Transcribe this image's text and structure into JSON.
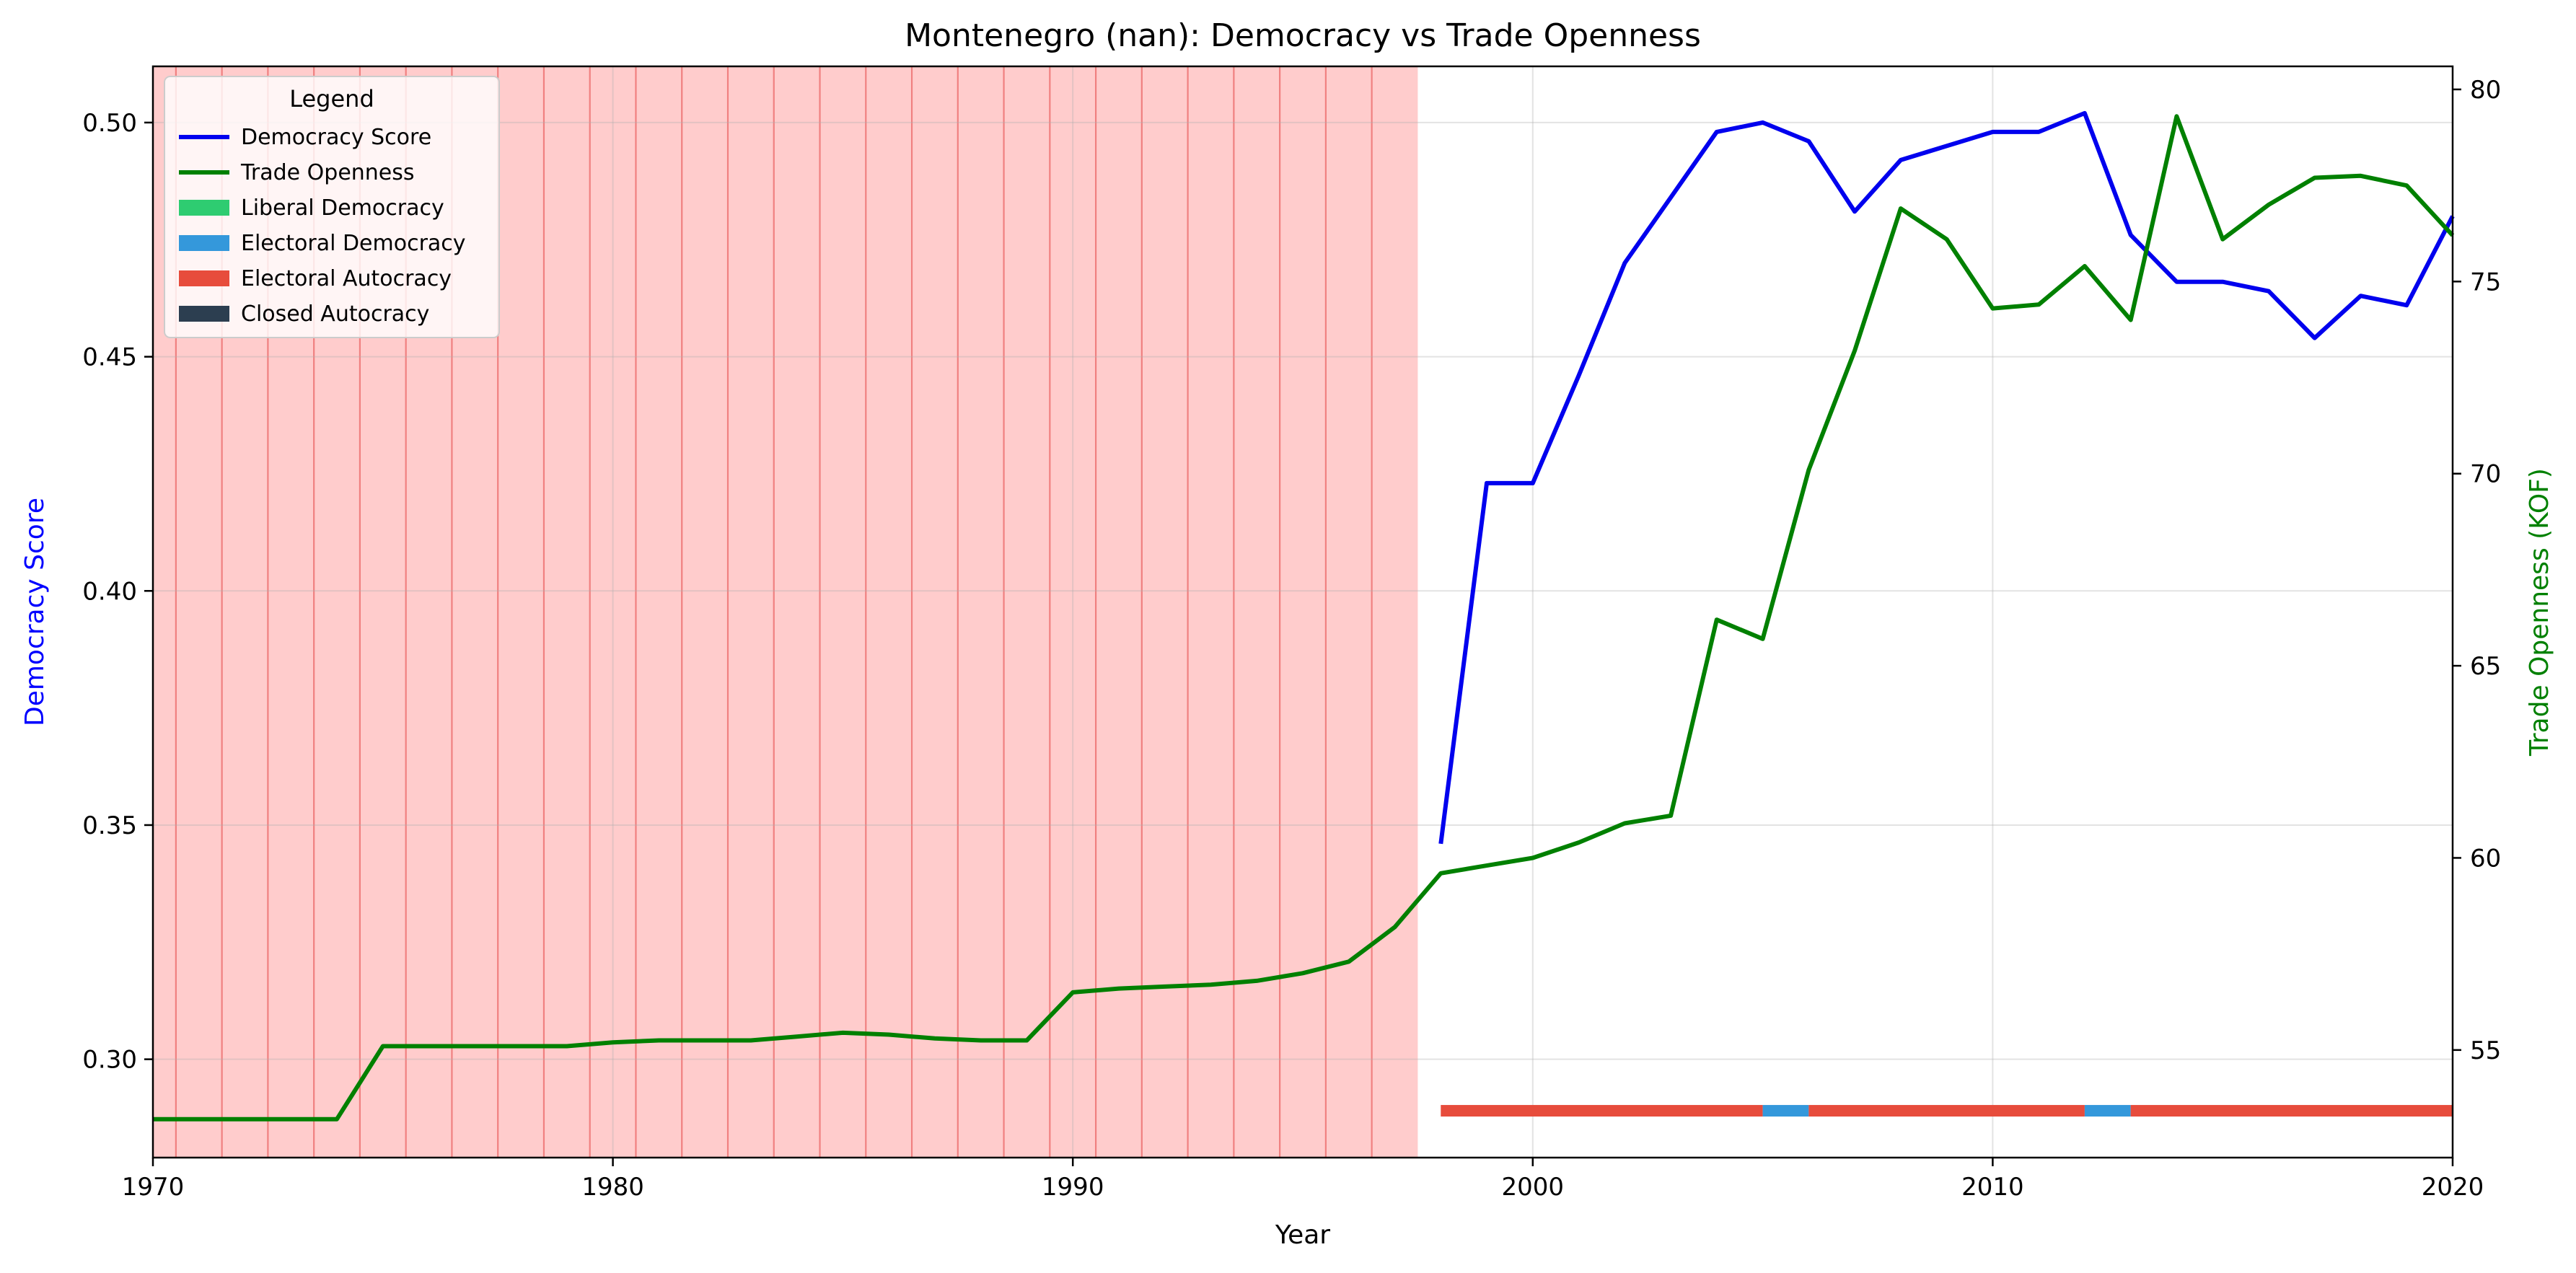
{
  "chart_data": {
    "type": "line",
    "title": "Montenegro (nan): Democracy vs Trade Openness",
    "xlabel": "Year",
    "ylabel_left": "Democracy Score",
    "ylabel_right": "Trade Openness (KOF)",
    "xlim": [
      1970,
      2020
    ],
    "ylim_left": [
      0.279,
      0.512
    ],
    "ylim_right": [
      52.2,
      80.6
    ],
    "x_ticks": [
      1970,
      1980,
      1990,
      2000,
      2010,
      2020
    ],
    "y_left_ticks": [
      0.3,
      0.35,
      0.4,
      0.45,
      0.5
    ],
    "y_left_tick_labels": [
      "0.30",
      "0.35",
      "0.40",
      "0.45",
      "0.50"
    ],
    "y_right_ticks": [
      55,
      60,
      65,
      70,
      75,
      80
    ],
    "y_right_tick_labels": [
      "55",
      "60",
      "65",
      "70",
      "75",
      "80"
    ],
    "grid": true,
    "legend_position": "upper-left",
    "legend_title": "Legend",
    "colors": {
      "democracy": "#0000ee",
      "trade": "#008000",
      "liberal_democracy": "#2ecc71",
      "electoral_democracy": "#3498db",
      "electoral_autocracy": "#e74c3c",
      "closed_autocracy": "#2c3e50",
      "no_data_shading": "#ffcccc",
      "year_line": "#f08080",
      "ylabel_left": "#0000ff",
      "ylabel_right": "#008000"
    },
    "series": [
      {
        "name": "Democracy Score",
        "axis": "left",
        "x": [
          1998,
          1999,
          2000,
          2001,
          2002,
          2003,
          2004,
          2005,
          2006,
          2007,
          2008,
          2009,
          2010,
          2011,
          2012,
          2013,
          2014,
          2015,
          2016,
          2017,
          2018,
          2019,
          2020
        ],
        "y": [
          0.346,
          0.423,
          0.423,
          0.446,
          0.47,
          0.484,
          0.498,
          0.5,
          0.496,
          0.481,
          0.492,
          0.495,
          0.498,
          0.498,
          0.502,
          0.476,
          0.466,
          0.466,
          0.464,
          0.454,
          0.463,
          0.461,
          0.48
        ]
      },
      {
        "name": "Trade Openness",
        "axis": "right",
        "x": [
          1970,
          1971,
          1972,
          1973,
          1974,
          1975,
          1976,
          1977,
          1978,
          1979,
          1980,
          1981,
          1982,
          1983,
          1984,
          1985,
          1986,
          1987,
          1988,
          1989,
          1990,
          1991,
          1992,
          1993,
          1994,
          1995,
          1996,
          1997,
          1998,
          1999,
          2000,
          2001,
          2002,
          2003,
          2004,
          2005,
          2006,
          2007,
          2008,
          2009,
          2010,
          2011,
          2012,
          2013,
          2014,
          2015,
          2016,
          2017,
          2018,
          2019,
          2020
        ],
        "y": [
          53.2,
          53.2,
          53.2,
          53.2,
          53.2,
          55.1,
          55.1,
          55.1,
          55.1,
          55.1,
          55.2,
          55.25,
          55.25,
          55.25,
          55.35,
          55.45,
          55.4,
          55.3,
          55.25,
          55.25,
          56.5,
          56.6,
          56.65,
          56.7,
          56.8,
          57.0,
          57.3,
          58.2,
          59.6,
          59.8,
          60.0,
          60.4,
          60.9,
          61.1,
          66.2,
          65.7,
          70.1,
          73.2,
          76.9,
          76.1,
          74.3,
          74.4,
          75.4,
          74.0,
          79.3,
          76.1,
          77.0,
          77.7,
          77.75,
          77.5,
          76.2
        ]
      }
    ],
    "regime_bars": [
      {
        "from": 1998,
        "to": 2005,
        "regime": "Electoral Autocracy"
      },
      {
        "from": 2005,
        "to": 2006,
        "regime": "Electoral Democracy"
      },
      {
        "from": 2006,
        "to": 2012,
        "regime": "Electoral Autocracy"
      },
      {
        "from": 2012,
        "to": 2013,
        "regime": "Electoral Democracy"
      },
      {
        "from": 2013,
        "to": 2020,
        "regime": "Electoral Autocracy"
      }
    ],
    "regime_bar_level": 0.289,
    "no_data_shading": {
      "from": 1970,
      "to": 1997.5
    },
    "year_line_range": [
      1970.5,
      1996.5
    ],
    "legend": [
      {
        "label": "Democracy Score",
        "kind": "line",
        "color_key": "democracy"
      },
      {
        "label": "Trade Openness",
        "kind": "line",
        "color_key": "trade"
      },
      {
        "label": "Liberal Democracy",
        "kind": "patch",
        "color_key": "liberal_democracy"
      },
      {
        "label": "Electoral Democracy",
        "kind": "patch",
        "color_key": "electoral_democracy"
      },
      {
        "label": "Electoral Autocracy",
        "kind": "patch",
        "color_key": "electoral_autocracy"
      },
      {
        "label": "Closed Autocracy",
        "kind": "patch",
        "color_key": "closed_autocracy"
      }
    ]
  }
}
